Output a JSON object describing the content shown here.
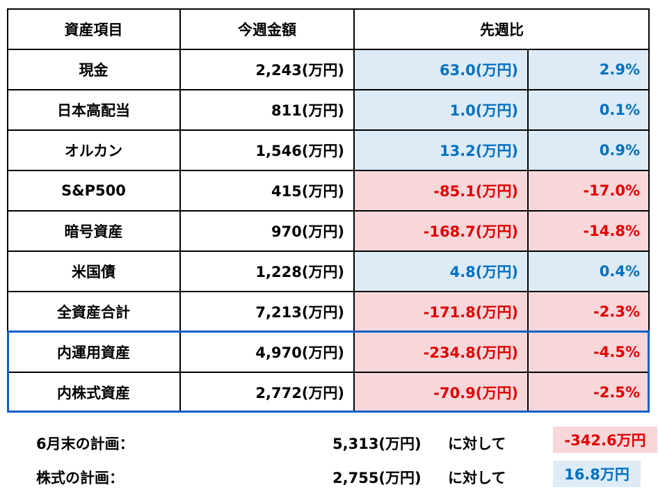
{
  "header": {
    "col_item": "資産項目",
    "col_this_week": "今週金額",
    "col_vs_last": "先週比"
  },
  "rows": [
    {
      "name": "現金",
      "amount": "2,243(万円)",
      "diff": "63.0(万円)",
      "pct": "2.9%",
      "sign": "pos"
    },
    {
      "name": "日本高配当",
      "amount": "811(万円)",
      "diff": "1.0(万円)",
      "pct": "0.1%",
      "sign": "pos"
    },
    {
      "name": "オルカン",
      "amount": "1,546(万円)",
      "diff": "13.2(万円)",
      "pct": "0.9%",
      "sign": "pos"
    },
    {
      "name": "S&P500",
      "amount": "415(万円)",
      "diff": "-85.1(万円)",
      "pct": "-17.0%",
      "sign": "neg"
    },
    {
      "name": "暗号資産",
      "amount": "970(万円)",
      "diff": "-168.7(万円)",
      "pct": "-14.8%",
      "sign": "neg"
    },
    {
      "name": "米国債",
      "amount": "1,228(万円)",
      "diff": "4.8(万円)",
      "pct": "0.4%",
      "sign": "pos"
    },
    {
      "name": "全資産合計",
      "amount": "7,213(万円)",
      "diff": "-171.8(万円)",
      "pct": "-2.3%",
      "sign": "neg"
    },
    {
      "name": "内運用資産",
      "amount": "4,970(万円)",
      "diff": "-234.8(万円)",
      "pct": "-4.5%",
      "sign": "neg"
    },
    {
      "name": "内株式資産",
      "amount": "2,772(万円)",
      "diff": "-70.9(万円)",
      "pct": "-2.5%",
      "sign": "neg"
    }
  ],
  "plans": [
    {
      "label": "6月末の計画：",
      "target": "5,313(万円)",
      "suffix": "に対して",
      "result": "-342.6万円",
      "sign": "neg"
    },
    {
      "label": "株式の計画：",
      "target": "2,755(万円)",
      "suffix": "に対して",
      "result": "16.8万円",
      "sign": "pos"
    }
  ],
  "colors": {
    "positive_text": "#0070c0",
    "positive_bg": "#ddebf7",
    "negative_text": "#e00000",
    "negative_bg": "#f8d7da",
    "highlight_frame": "#0a5fc8"
  }
}
